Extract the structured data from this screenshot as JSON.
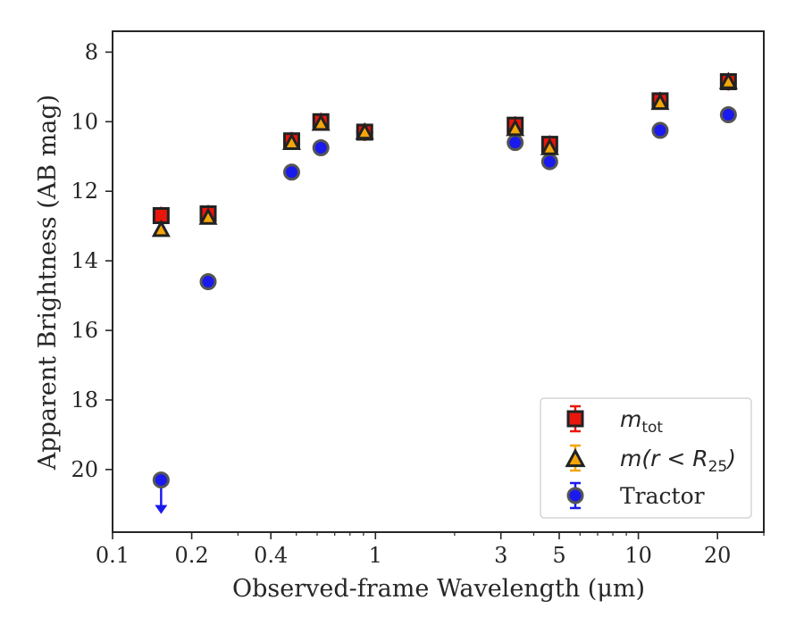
{
  "chart_data": {
    "type": "scatter",
    "title": "",
    "xlabel": "Observed-frame Wavelength (μm)",
    "ylabel": "Apparent Brightness (AB mag)",
    "xscale": "log",
    "xlim": [
      0.1,
      30
    ],
    "ylim": [
      21.8,
      7.4
    ],
    "y_inverted": true,
    "xticks": [
      0.1,
      0.2,
      0.4,
      1,
      3,
      5,
      10,
      20
    ],
    "xtick_labels": [
      "0.1",
      "0.2",
      "0.4",
      "1",
      "3",
      "5",
      "10",
      "20"
    ],
    "yticks": [
      8,
      10,
      12,
      14,
      16,
      18,
      20
    ],
    "ytick_labels": [
      "8",
      "10",
      "12",
      "14",
      "16",
      "18",
      "20"
    ],
    "grid": false,
    "legend_position": "lower-right",
    "series": [
      {
        "name": "m_tot",
        "marker": "square",
        "color": "#e8160c",
        "edge": "#222222",
        "x": [
          0.153,
          0.231,
          0.48,
          0.62,
          0.91,
          3.4,
          4.6,
          12.1,
          22.0
        ],
        "y": [
          12.7,
          12.65,
          10.55,
          10.0,
          10.3,
          10.1,
          10.65,
          9.4,
          8.85
        ]
      },
      {
        "name": "m(r<R25)",
        "marker": "triangle",
        "color": "#f5a50a",
        "edge": "#222222",
        "x": [
          0.153,
          0.231,
          0.48,
          0.62,
          0.91,
          3.4,
          4.6,
          12.1,
          22.0
        ],
        "y": [
          13.1,
          12.75,
          10.6,
          10.05,
          10.3,
          10.2,
          10.75,
          9.45,
          8.85
        ]
      },
      {
        "name": "Tractor",
        "marker": "circle",
        "color": "#1a1aee",
        "edge": "#555555",
        "x": [
          0.153,
          0.231,
          0.48,
          0.62,
          0.91,
          3.4,
          4.6,
          12.1,
          22.0
        ],
        "y": [
          20.3,
          14.6,
          11.45,
          10.75,
          10.3,
          10.6,
          11.15,
          10.25,
          9.8
        ],
        "upper_limit_index": 0
      }
    ],
    "legend": [
      {
        "label": "m",
        "sub": "tot",
        "marker": "square"
      },
      {
        "label": "m(r < R",
        "sub": "25",
        "close": ")",
        "marker": "triangle"
      },
      {
        "label": "Tractor",
        "marker": "circle"
      }
    ]
  }
}
